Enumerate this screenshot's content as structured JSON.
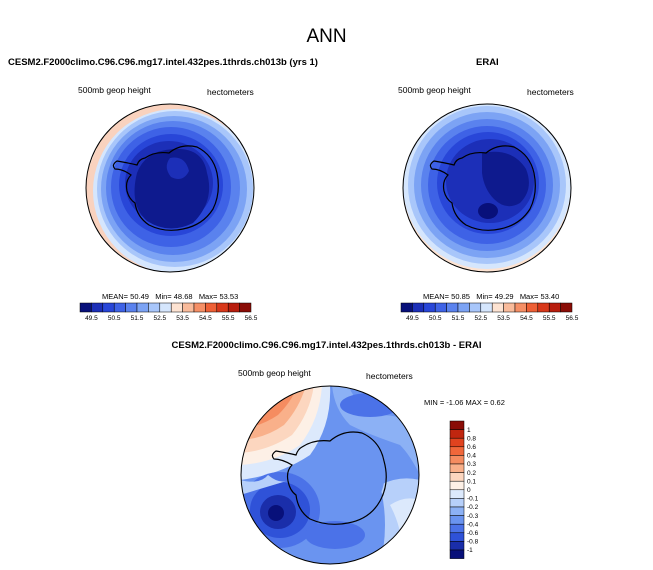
{
  "page": {
    "title": "ANN"
  },
  "panels": [
    {
      "id": "model",
      "title": "CESM2.F2000climo.C96.C96.mg17.intel.432pes.1thrds.ch013b (yrs 1)",
      "variable": "500mb geop height",
      "units": "hectometers",
      "stats": {
        "mean_label": "MEAN=",
        "mean": "50.49",
        "min_label": "Min=",
        "min": "48.68",
        "max_label": "Max=",
        "max": "53.53"
      }
    },
    {
      "id": "obs",
      "title": "ERAI",
      "variable": "500mb geop height",
      "units": "hectometers",
      "stats": {
        "mean_label": "MEAN=",
        "mean": "50.85",
        "min_label": "Min=",
        "min": "49.29",
        "max_label": "Max=",
        "max": "53.40"
      }
    },
    {
      "id": "diff",
      "title": "CESM2.F2000climo.C96.C96.mg17.intel.432pes.1thrds.ch013b - ERAI",
      "variable": "500mb geop height",
      "units": "hectometers",
      "stats_text": "MIN =  -1.06 MAX =   0.62"
    }
  ],
  "colorbar_abs": {
    "labels": [
      "49.5",
      "50.5",
      "51.5",
      "52.5",
      "53.5",
      "54.5",
      "55.5",
      "56.5"
    ],
    "colors": [
      "#08107a",
      "#1c2fb8",
      "#2846d8",
      "#3e62e6",
      "#5a82ee",
      "#7ca3f4",
      "#a8c6fa",
      "#d5e6fd",
      "#fde3d2",
      "#f9bb9b",
      "#f58f66",
      "#ee6036",
      "#d8381a",
      "#b81d0d",
      "#8a0c06"
    ]
  },
  "colorbar_diff": {
    "labels": [
      "1",
      "0.8",
      "0.6",
      "0.4",
      "0.3",
      "0.2",
      "0.1",
      "0",
      "-0.1",
      "-0.2",
      "-0.3",
      "-0.4",
      "-0.6",
      "-0.8",
      "-1"
    ],
    "colors": [
      "#8a0c06",
      "#c0260f",
      "#e0431f",
      "#f0673a",
      "#f58c60",
      "#f9b08a",
      "#fcd6bf",
      "#fdf0e6",
      "#dce9fc",
      "#b7d0fa",
      "#8cb1f5",
      "#6a94f0",
      "#4b72e8",
      "#2f52d8",
      "#1a2eaa",
      "#08107a"
    ]
  }
}
